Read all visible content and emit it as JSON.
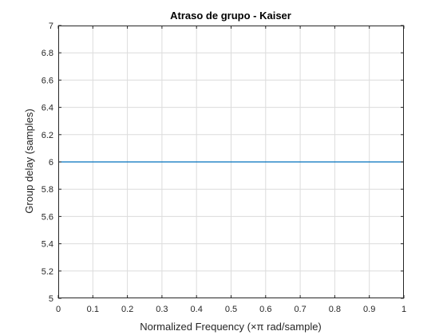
{
  "chart_data": {
    "type": "line",
    "title": "Atraso de grupo - Kaiser",
    "xlabel": "Normalized Frequency (×π rad/sample)",
    "ylabel": "Group delay (samples)",
    "xlim": [
      0,
      1
    ],
    "ylim": [
      5,
      7
    ],
    "xticks": [
      0,
      0.1,
      0.2,
      0.3,
      0.4,
      0.5,
      0.6,
      0.7,
      0.8,
      0.9,
      1
    ],
    "xtick_labels": [
      "0",
      "0.1",
      "0.2",
      "0.3",
      "0.4",
      "0.5",
      "0.6",
      "0.7",
      "0.8",
      "0.9",
      "1"
    ],
    "yticks": [
      5,
      5.2,
      5.4,
      5.6,
      5.8,
      6,
      6.2,
      6.4,
      6.6,
      6.8,
      7
    ],
    "ytick_labels": [
      "5",
      "5.2",
      "5.4",
      "5.6",
      "5.8",
      "6",
      "6.2",
      "6.4",
      "6.6",
      "6.8",
      "7"
    ],
    "grid": true,
    "legend": false,
    "series": [
      {
        "color": "#0072bd",
        "x": [
          0,
          1
        ],
        "y": [
          6,
          6
        ]
      }
    ],
    "colors": {
      "axis": "#262626",
      "grid": "#dcdcdc"
    }
  }
}
